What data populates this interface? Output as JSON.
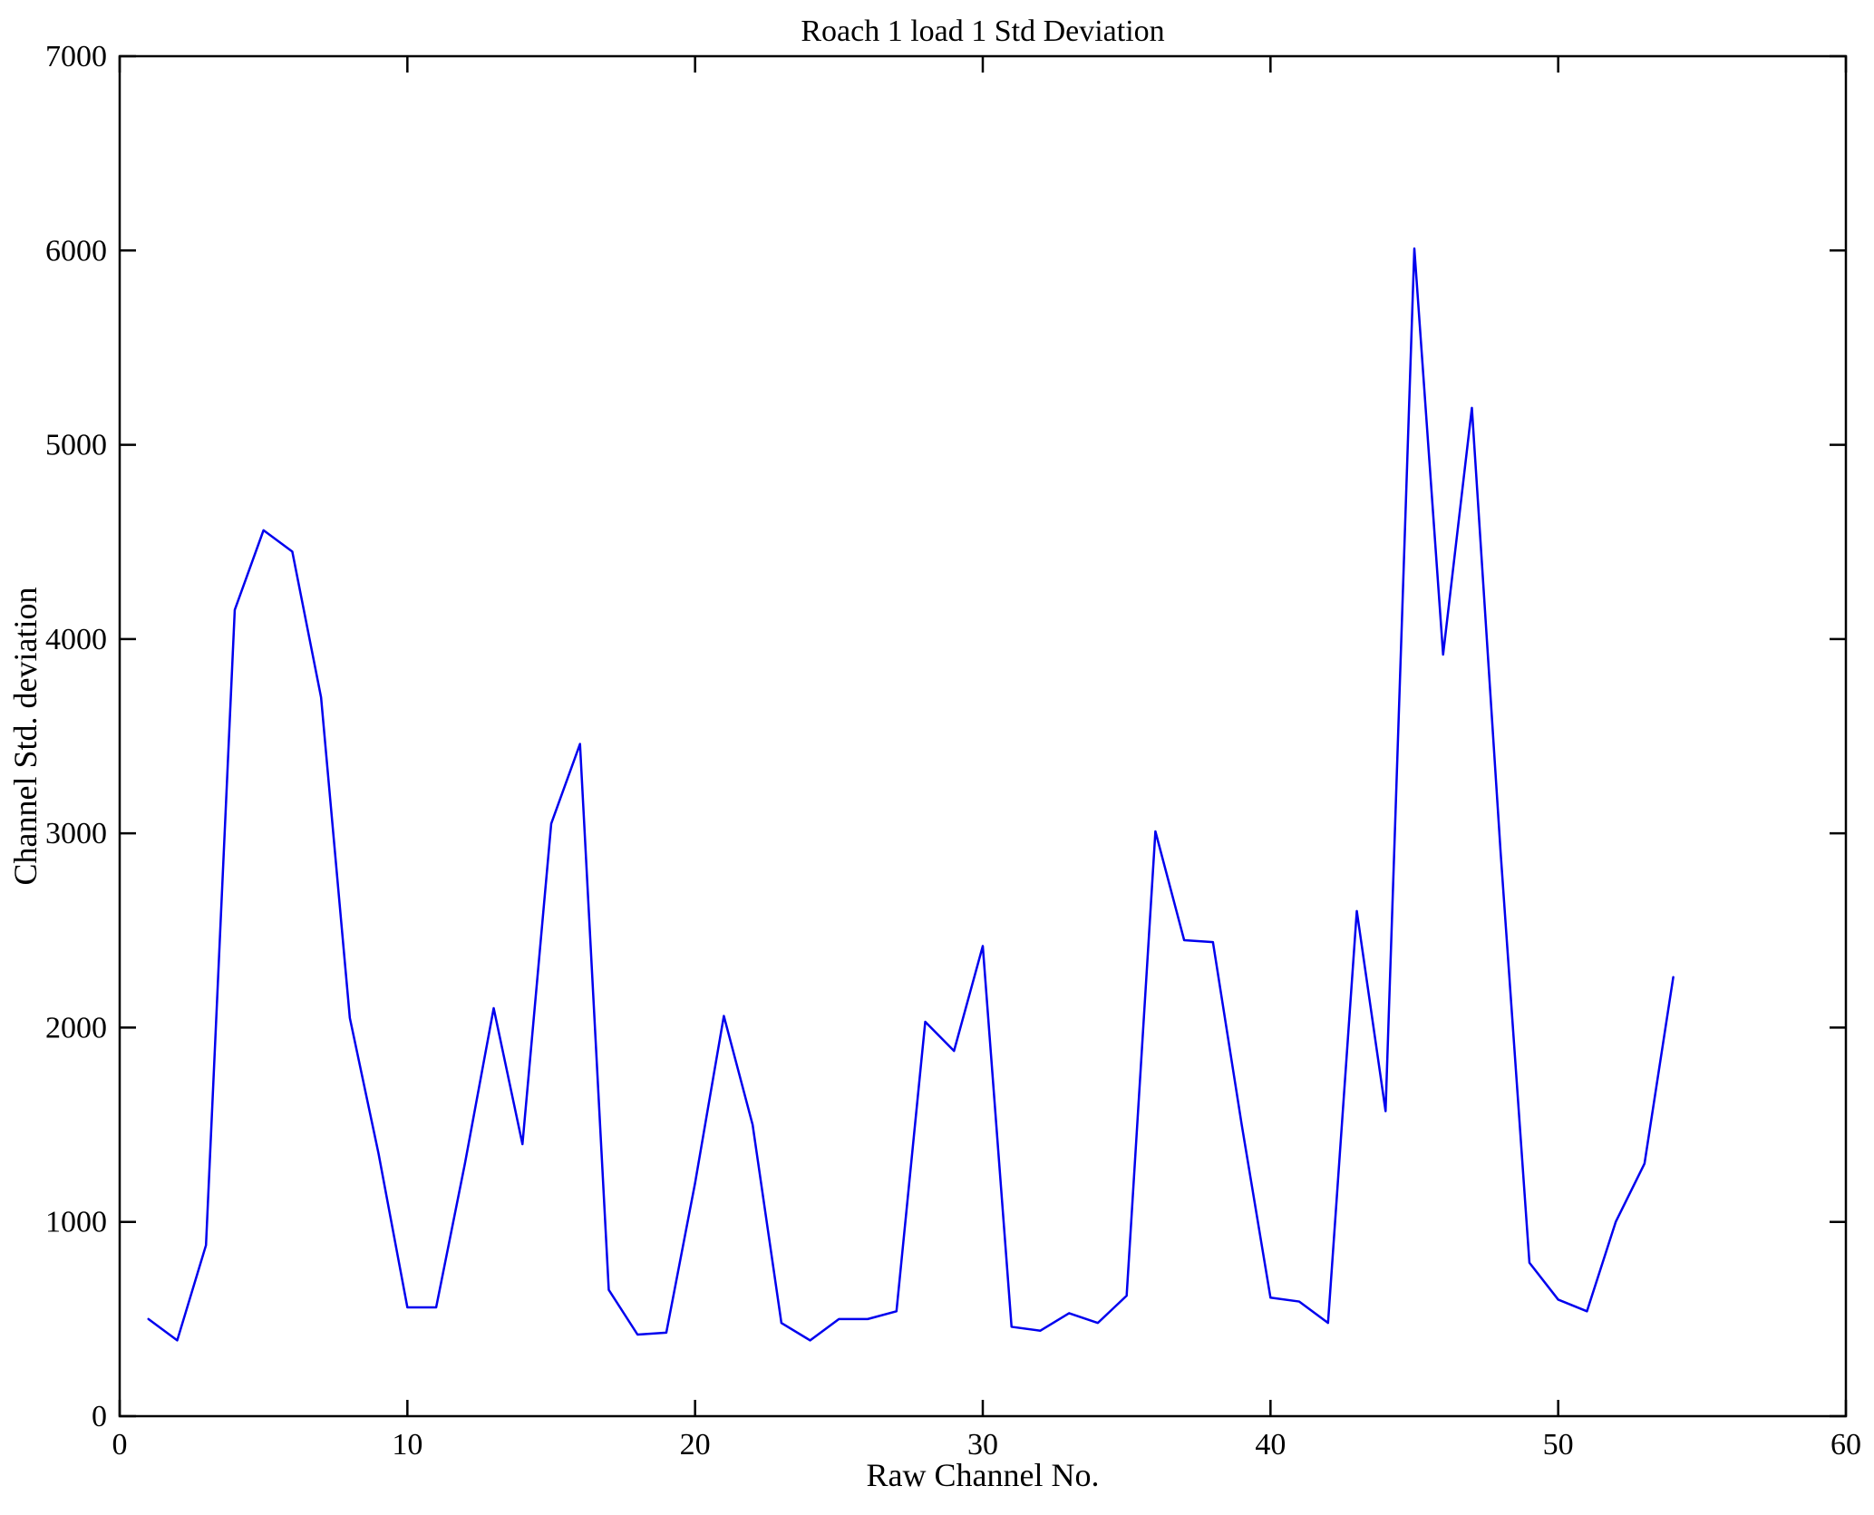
{
  "figure": {
    "title": "Roach 1 load 1 Std Deviation",
    "xlabel": "Raw Channel No.",
    "ylabel": "Channel Std. deviation"
  },
  "colors": {
    "line": "#0000EE",
    "axis": "#000000",
    "background": "#FFFFFF"
  },
  "chart_data": {
    "type": "line",
    "title": "Roach 1 load 1 Std Deviation",
    "xlabel": "Raw Channel No.",
    "ylabel": "Channel Std. deviation",
    "xlim": [
      0,
      60
    ],
    "ylim": [
      0,
      7000
    ],
    "xticks": [
      0,
      10,
      20,
      30,
      40,
      50,
      60
    ],
    "yticks": [
      0,
      1000,
      2000,
      3000,
      4000,
      5000,
      6000,
      7000
    ],
    "grid": false,
    "legend": null,
    "x": [
      1,
      2,
      3,
      4,
      5,
      6,
      7,
      8,
      9,
      10,
      11,
      12,
      13,
      14,
      15,
      16,
      17,
      18,
      19,
      20,
      21,
      22,
      23,
      24,
      25,
      26,
      27,
      28,
      29,
      30,
      31,
      32,
      33,
      34,
      35,
      36,
      37,
      38,
      39,
      40,
      41,
      42,
      43,
      44,
      45,
      46,
      47,
      48,
      49,
      50,
      51,
      52,
      53,
      54
    ],
    "series": [
      {
        "name": "Channel Std. deviation",
        "values": [
          500,
          390,
          880,
          4150,
          4560,
          4450,
          3700,
          2050,
          1350,
          560,
          560,
          1300,
          2100,
          1400,
          3050,
          3460,
          650,
          420,
          430,
          1200,
          2060,
          1500,
          480,
          390,
          500,
          500,
          540,
          2030,
          1880,
          2420,
          460,
          440,
          530,
          480,
          620,
          3010,
          2450,
          2440,
          1500,
          610,
          590,
          480,
          2600,
          1570,
          6010,
          3920,
          5190,
          2900,
          790,
          600,
          540,
          1000,
          1300,
          2260
        ]
      }
    ]
  }
}
